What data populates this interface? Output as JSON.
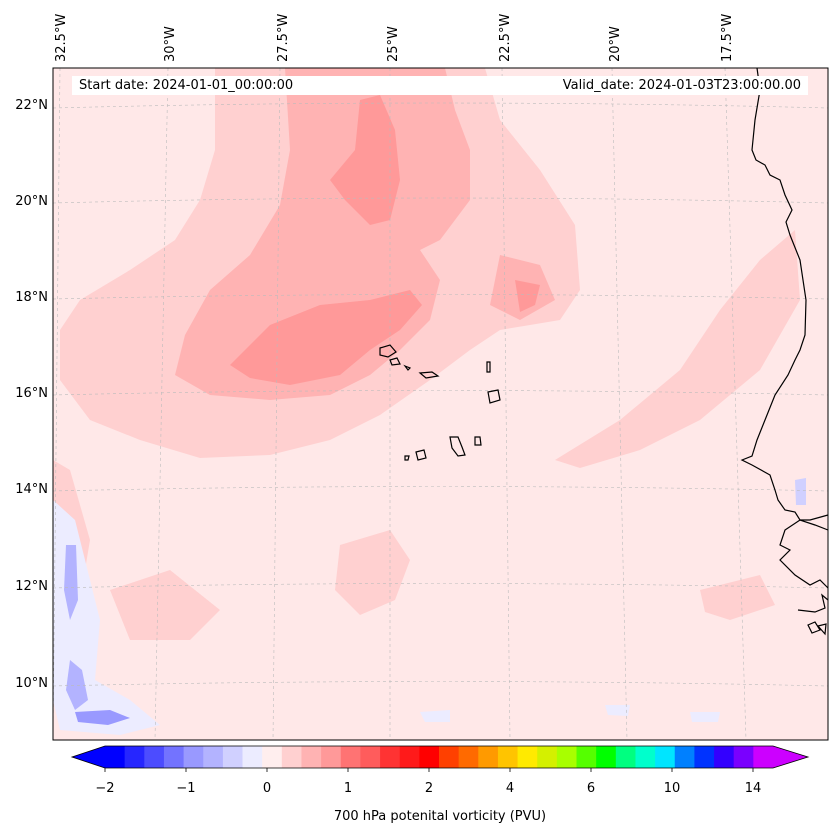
{
  "header": {
    "start_date": "Start date: 2024-01-01_00:00:00",
    "valid_date": "Valid_date: 2024-01-03T23:00:00.00"
  },
  "map": {
    "longitude_labels": [
      "32.5°W",
      "30°W",
      "27.5°W",
      "25°W",
      "22.5°W",
      "20°W",
      "17.5°W"
    ],
    "latitude_labels": [
      "22°N",
      "20°N",
      "18°N",
      "16°N",
      "14°N",
      "12°N",
      "10°N"
    ],
    "field": "700 hPa potential vorticity",
    "background_color": "#ffe8e8",
    "coastline_color": "#000000"
  },
  "colorbar": {
    "title": "700 hPa potenital vorticity (PVU)",
    "tick_labels": [
      "−2",
      "−1",
      "0",
      "1",
      "2",
      "4",
      "6",
      "10",
      "14"
    ],
    "extend": "both",
    "colors": [
      "#0000ff",
      "#2626ff",
      "#4c4cff",
      "#7373ff",
      "#9999ff",
      "#b3b3ff",
      "#d0d0ff",
      "#ececff",
      "#ffeeee",
      "#ffd0d0",
      "#ffb3b3",
      "#ff9999",
      "#ff7373",
      "#ff5c5c",
      "#ff3333",
      "#ff1a1a",
      "#ff0000",
      "#ff4000",
      "#ff6a00",
      "#ff9a00",
      "#ffc400",
      "#ffea00",
      "#d4f000",
      "#a8ff00",
      "#55ff00",
      "#00ff00",
      "#00ff80",
      "#00ffcc",
      "#00e5ff",
      "#0080ff",
      "#0033ff",
      "#3300ff",
      "#7a00ff",
      "#cc00ff"
    ],
    "under_color": "#0000ff",
    "over_color": "#cc00ff"
  }
}
